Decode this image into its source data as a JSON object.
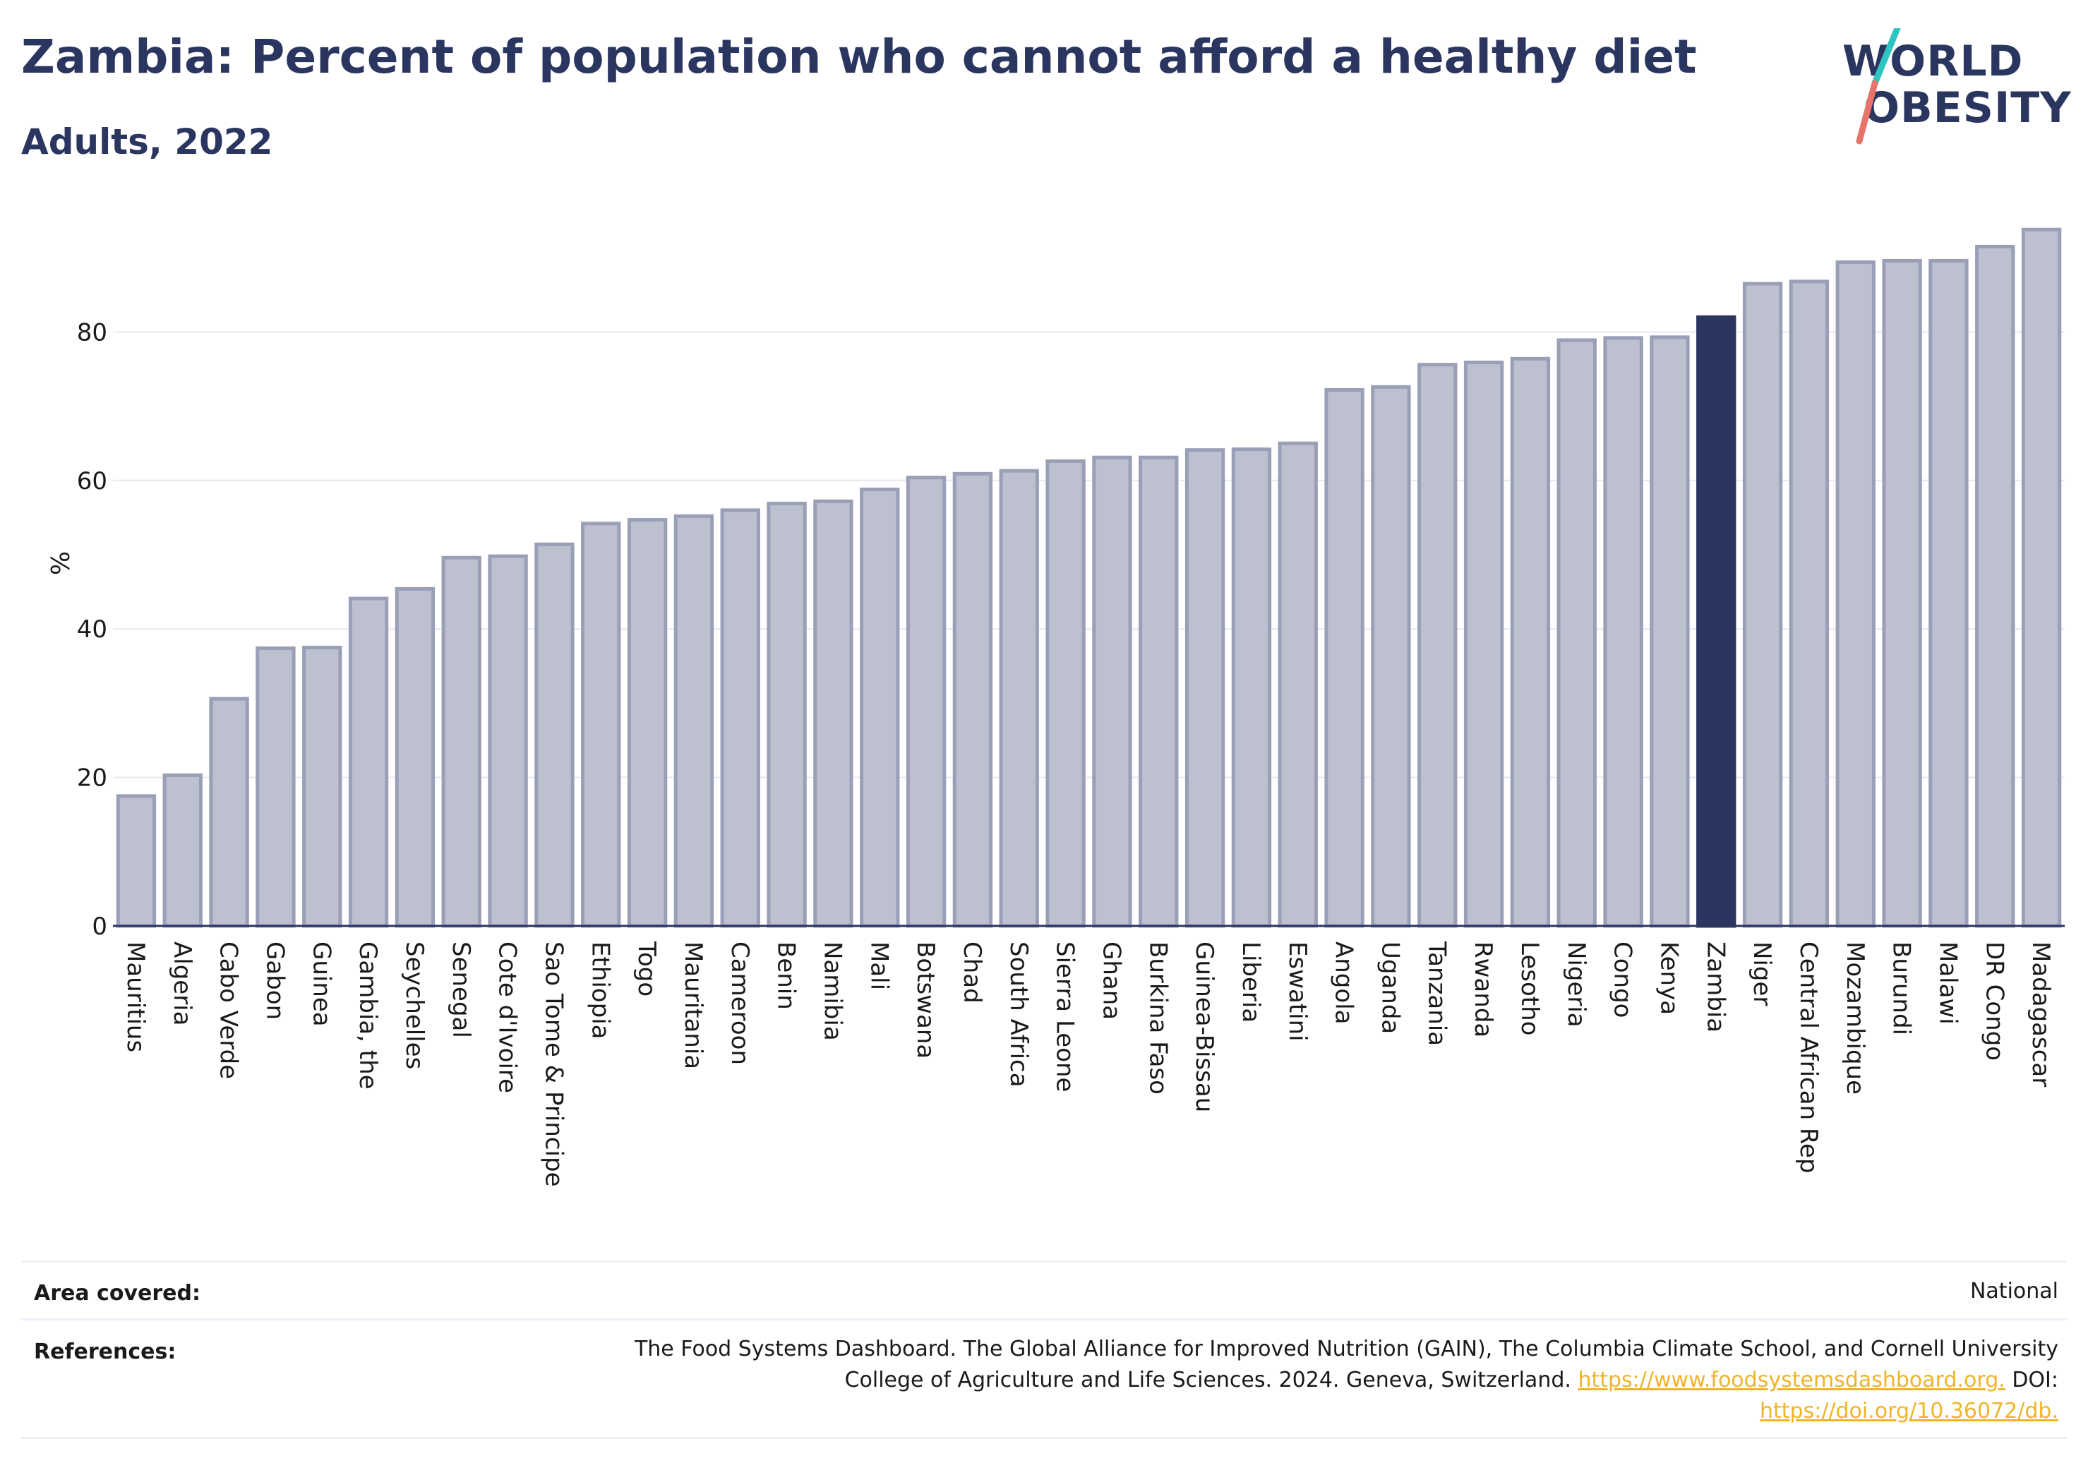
{
  "header": {
    "title": "Zambia: Percent of population who cannot afford a healthy diet",
    "subtitle": "Adults, 2022"
  },
  "logo": {
    "line1": "WORLD",
    "line2": "OBESITY",
    "accent_teal": "#2ec4c1",
    "accent_coral": "#e8736a"
  },
  "colors": {
    "bar_default": "#bcc0cf",
    "bar_stroke": "#9a9fb8",
    "bar_highlight": "#2a3560",
    "text": "#2a3560",
    "grid": "#e6e8f0"
  },
  "chart_data": {
    "type": "bar",
    "ylabel": "%",
    "ylim": [
      0,
      100
    ],
    "yticks": [
      "0",
      "20",
      "40",
      "60",
      "80"
    ],
    "highlight": "Zambia",
    "grid": true,
    "categories": [
      "Mauritius",
      "Algeria",
      "Cabo Verde",
      "Gabon",
      "Guinea",
      "Gambia, the",
      "Seychelles",
      "Senegal",
      "Cote d'Ivoire",
      "Sao Tome & Principe",
      "Ethiopia",
      "Togo",
      "Mauritania",
      "Cameroon",
      "Benin",
      "Namibia",
      "Mali",
      "Botswana",
      "Chad",
      "South Africa",
      "Sierra Leone",
      "Ghana",
      "Burkina Faso",
      "Guinea-Bissau",
      "Liberia",
      "Eswatini",
      "Angola",
      "Uganda",
      "Tanzania",
      "Rwanda",
      "Lesotho",
      "Nigeria",
      "Congo",
      "Kenya",
      "Zambia",
      "Niger",
      "Central African Rep",
      "Mozambique",
      "Burundi",
      "Malawi",
      "DR Congo",
      "Madagascar"
    ],
    "values": [
      17.5,
      20.3,
      30.6,
      37.4,
      37.5,
      44.1,
      45.4,
      49.6,
      49.8,
      51.4,
      54.2,
      54.7,
      55.2,
      56.0,
      56.9,
      57.2,
      58.8,
      60.4,
      60.9,
      61.3,
      62.6,
      63.1,
      63.1,
      64.1,
      64.2,
      65.0,
      72.2,
      72.6,
      75.6,
      75.9,
      76.4,
      78.9,
      79.2,
      79.3,
      82.0,
      86.5,
      86.8,
      89.4,
      89.6,
      89.6,
      91.5,
      93.8
    ]
  },
  "footer": {
    "area_label": "Area covered:",
    "area_value": "National",
    "references_label": "References:",
    "references_line1": "The Food Systems Dashboard. The Global Alliance for Improved Nutrition (GAIN), The Columbia Climate School, and Cornell University",
    "references_line2": "College of Agriculture and Life Sciences. 2024. Geneva, Switzerland.",
    "references_link1": "https://www.foodsystemsdashboard.org.",
    "references_doi": "DOI:",
    "references_link2": "https://doi.org/10.36072/db."
  }
}
